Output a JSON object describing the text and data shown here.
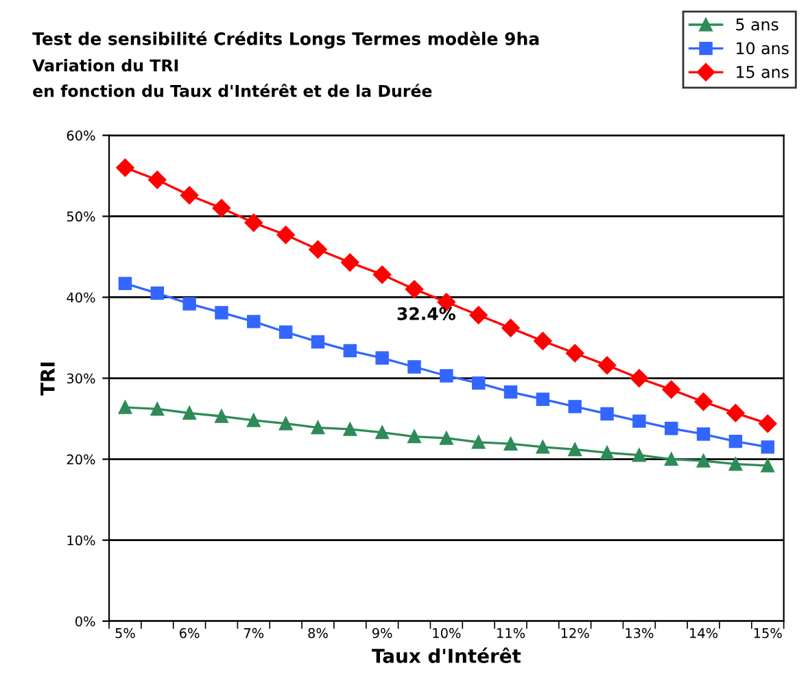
{
  "chart_data": {
    "type": "line",
    "title": "Test de sensibilité Crédits Longs Termes modèle 9ha",
    "subtitle": "Variation du TRI\nen fonction du Taux d'Intérêt et de la Durée",
    "xlabel": "Taux d'Intérêt",
    "ylabel": "TRI",
    "categories": [
      "5%",
      null,
      "6%",
      null,
      "7%",
      null,
      "8%",
      null,
      "9%",
      null,
      "10%",
      null,
      "11%",
      null,
      "12%",
      null,
      "13%",
      null,
      "14%",
      null,
      "15%"
    ],
    "series": [
      {
        "name": "5 ans",
        "color": "#2e8b57",
        "marker": "triangle",
        "values": [
          26.4,
          26.2,
          25.7,
          25.3,
          24.8,
          24.4,
          23.9,
          23.7,
          23.3,
          22.8,
          22.6,
          22.1,
          21.9,
          21.5,
          21.2,
          20.8,
          20.5,
          20.0,
          19.8,
          19.4,
          19.2
        ]
      },
      {
        "name": "10 ans",
        "color": "#3366ff",
        "marker": "square",
        "values": [
          41.7,
          40.5,
          39.2,
          38.1,
          37.0,
          35.7,
          34.5,
          33.4,
          32.5,
          31.4,
          30.3,
          29.4,
          28.3,
          27.4,
          26.5,
          25.6,
          24.7,
          23.8,
          23.1,
          22.2,
          21.5
        ]
      },
      {
        "name": "15 ans",
        "color": "#ff0000",
        "marker": "diamond",
        "values": [
          56.0,
          54.5,
          52.6,
          51.0,
          49.2,
          47.7,
          45.9,
          44.3,
          42.8,
          41.0,
          39.4,
          37.8,
          36.2,
          34.6,
          33.1,
          31.6,
          30.0,
          28.6,
          27.1,
          25.7,
          24.4
        ]
      }
    ],
    "annotations": [
      "32.4%"
    ],
    "ylim": [
      0,
      60
    ],
    "yticks": [
      {
        "value": 0,
        "label": "0%"
      },
      {
        "value": 10,
        "label": "10%"
      },
      {
        "value": 20,
        "label": "20%"
      },
      {
        "value": 30,
        "label": "30%"
      },
      {
        "value": 40,
        "label": "40%"
      },
      {
        "value": 50,
        "label": "50%"
      },
      {
        "value": 60,
        "label": "60%"
      }
    ],
    "grid": "y",
    "legend": "top right"
  }
}
